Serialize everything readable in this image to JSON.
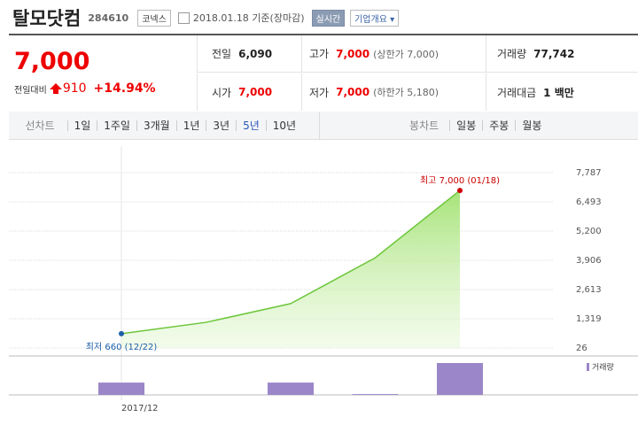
{
  "header": {
    "name": "탈모닷컴",
    "code": "284610",
    "market": "코넥스",
    "date": "2018.01.18 기준(장마감)",
    "realtime": "실시간",
    "company_info": "기업개요"
  },
  "price": {
    "current": "7,000",
    "change_label": "전일대비",
    "change": "910",
    "change_pct": "+14.94%"
  },
  "quote": [
    {
      "label": "전일",
      "value": "6,090"
    },
    {
      "label": "고가",
      "value": "7,000",
      "note": "(상한가 7,000)"
    },
    {
      "label": "거래량",
      "value": "77,742"
    },
    {
      "label": "시가",
      "value": "7,000"
    },
    {
      "label": "저가",
      "value": "7,000",
      "note": "(하한가 5,180)"
    },
    {
      "label": "거래대금",
      "value": "1 백만"
    }
  ],
  "tabs": {
    "line_label": "선차트",
    "line_periods": [
      "1일",
      "1주일",
      "3개월",
      "1년",
      "3년",
      "5년",
      "10년"
    ],
    "selected_index": 5,
    "candle_label": "봉차트",
    "candle_periods": [
      "일봉",
      "주봉",
      "월봉"
    ]
  },
  "chart_data": {
    "type": "line",
    "categories": [
      "2017/12",
      null,
      null,
      null,
      null
    ],
    "values": [
      660,
      1160,
      1990,
      4020,
      7000
    ],
    "color": "#6cc63a",
    "ylim": [
      26,
      7787
    ],
    "yticks": [
      {
        "value": 7787,
        "label": "7,787"
      },
      {
        "value": 6493,
        "label": "6,493"
      },
      {
        "value": 5200,
        "label": "5,200"
      },
      {
        "value": 3906,
        "label": "3,906"
      },
      {
        "value": 2613,
        "label": "2,613"
      },
      {
        "value": 1319,
        "label": "1,319"
      },
      26
    ],
    "grid": true,
    "annotations": [
      {
        "text": "최고 7,000 (01/18)",
        "index": 4,
        "color": "#cc0000"
      },
      {
        "text": "최저 660 (12/22)",
        "index": 0,
        "color": "#1c5fa8"
      }
    ],
    "volume": {
      "name": "거래량",
      "values": [
        30000,
        0,
        30000,
        2000,
        77742
      ],
      "color": "#9a86c8"
    }
  }
}
